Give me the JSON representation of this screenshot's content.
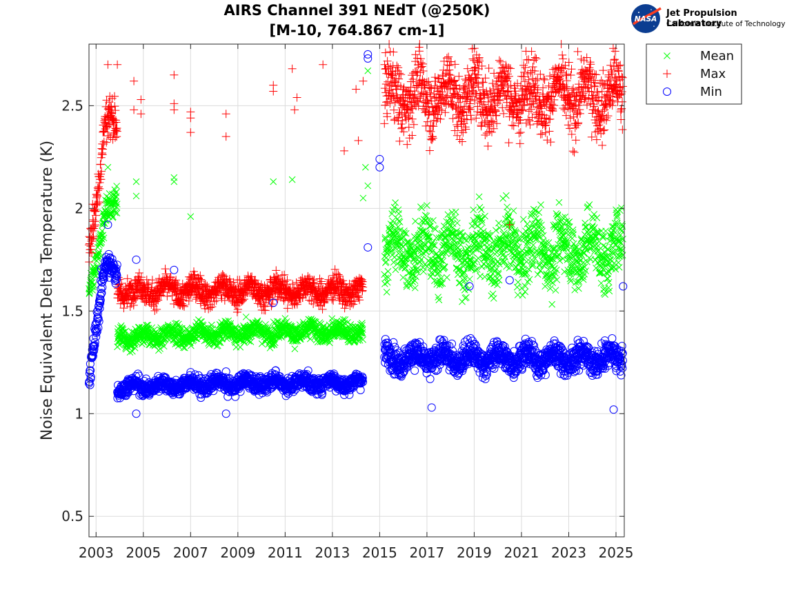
{
  "chart_data": {
    "type": "scatter",
    "title": [
      "AIRS Channel 391 NEdT (@250K)",
      "[M-10, 764.867 cm-1]"
    ],
    "xlabel": "",
    "ylabel": "Noise Equivalent Delta Temperature (K)",
    "xlim": [
      2002.7,
      2025.35
    ],
    "ylim": [
      0.4,
      2.8
    ],
    "xticks": [
      2003,
      2005,
      2007,
      2009,
      2011,
      2013,
      2015,
      2017,
      2019,
      2021,
      2023,
      2025
    ],
    "yticks": [
      0.5,
      1,
      1.5,
      2,
      2.5
    ],
    "xtick_labels": [
      "2003",
      "2005",
      "2007",
      "2009",
      "2011",
      "2013",
      "2015",
      "2017",
      "2019",
      "2021",
      "2023",
      "2025"
    ],
    "ytick_labels": [
      "0.5",
      "1",
      "1.5",
      "2",
      "2.5"
    ],
    "grid": true,
    "legend_position": "top-right outside",
    "series": [
      {
        "name": "Mean",
        "marker": "x",
        "color": "#00ff00",
        "segments": [
          {
            "x": [
              2002.7,
              2003.9
            ],
            "level": [
              1.55,
              2.0
            ],
            "spread": 0.1
          },
          {
            "x": [
              2003.9,
              2014.3
            ],
            "level": [
              1.37,
              1.4
            ],
            "spread": 0.06
          },
          {
            "x": [
              2015.2,
              2025.3
            ],
            "level": [
              1.8,
              1.8
            ],
            "spread": 0.2
          }
        ],
        "outliers": [
          [
            2003.5,
            2.2
          ],
          [
            2004.7,
            2.13
          ],
          [
            2004.7,
            2.06
          ],
          [
            2006.3,
            2.15
          ],
          [
            2006.3,
            2.13
          ],
          [
            2007.0,
            1.96
          ],
          [
            2010.5,
            2.13
          ],
          [
            2011.3,
            2.14
          ],
          [
            2014.3,
            2.05
          ],
          [
            2014.4,
            2.2
          ],
          [
            2014.5,
            2.67
          ],
          [
            2014.5,
            2.11
          ]
        ]
      },
      {
        "name": "Max",
        "marker": "+",
        "color": "#ff0000",
        "segments": [
          {
            "x": [
              2002.7,
              2003.9
            ],
            "level": [
              1.8,
              2.4
            ],
            "spread": 0.15
          },
          {
            "x": [
              2003.9,
              2014.3
            ],
            "level": [
              1.6,
              1.6
            ],
            "spread": 0.08
          },
          {
            "x": [
              2015.2,
              2025.3
            ],
            "level": [
              2.55,
              2.55
            ],
            "spread": 0.2
          }
        ],
        "outliers": [
          [
            2003.5,
            2.7
          ],
          [
            2003.9,
            2.7
          ],
          [
            2004.6,
            2.62
          ],
          [
            2004.6,
            2.48
          ],
          [
            2004.9,
            2.53
          ],
          [
            2004.9,
            2.46
          ],
          [
            2006.3,
            2.65
          ],
          [
            2006.3,
            2.51
          ],
          [
            2006.3,
            2.48
          ],
          [
            2007.0,
            2.47
          ],
          [
            2007.0,
            2.44
          ],
          [
            2007.0,
            2.37
          ],
          [
            2008.5,
            2.46
          ],
          [
            2008.5,
            2.35
          ],
          [
            2010.5,
            2.6
          ],
          [
            2010.5,
            2.57
          ],
          [
            2011.3,
            2.68
          ],
          [
            2011.4,
            2.48
          ],
          [
            2011.5,
            2.54
          ],
          [
            2012.6,
            2.7
          ],
          [
            2013.5,
            2.28
          ],
          [
            2014.0,
            2.58
          ],
          [
            2014.1,
            2.33
          ],
          [
            2014.3,
            2.62
          ],
          [
            2020.5,
            1.92
          ]
        ]
      },
      {
        "name": "Min",
        "marker": "o",
        "color": "#0000ff",
        "segments": [
          {
            "x": [
              2002.7,
              2003.9
            ],
            "level": [
              1.2,
              1.7
            ],
            "spread": 0.08
          },
          {
            "x": [
              2003.9,
              2014.3
            ],
            "level": [
              1.13,
              1.15
            ],
            "spread": 0.05
          },
          {
            "x": [
              2015.2,
              2025.3
            ],
            "level": [
              1.27,
              1.27
            ],
            "spread": 0.08
          }
        ],
        "outliers": [
          [
            2003.5,
            1.92
          ],
          [
            2004.7,
            1.75
          ],
          [
            2006.3,
            1.7
          ],
          [
            2010.5,
            1.54
          ],
          [
            2014.5,
            2.75
          ],
          [
            2014.5,
            2.73
          ],
          [
            2014.5,
            1.81
          ],
          [
            2015.0,
            2.24
          ],
          [
            2015.0,
            2.2
          ],
          [
            2018.8,
            1.62
          ],
          [
            2020.5,
            1.65
          ],
          [
            2025.3,
            1.62
          ],
          [
            2004.7,
            1.0
          ],
          [
            2008.5,
            1.0
          ],
          [
            2024.9,
            1.02
          ],
          [
            2017.2,
            1.03
          ]
        ]
      }
    ]
  },
  "logo": {
    "nasa_text": "NASA",
    "lab": "Jet Propulsion Laboratory",
    "institute": "California Institute of Technology"
  }
}
